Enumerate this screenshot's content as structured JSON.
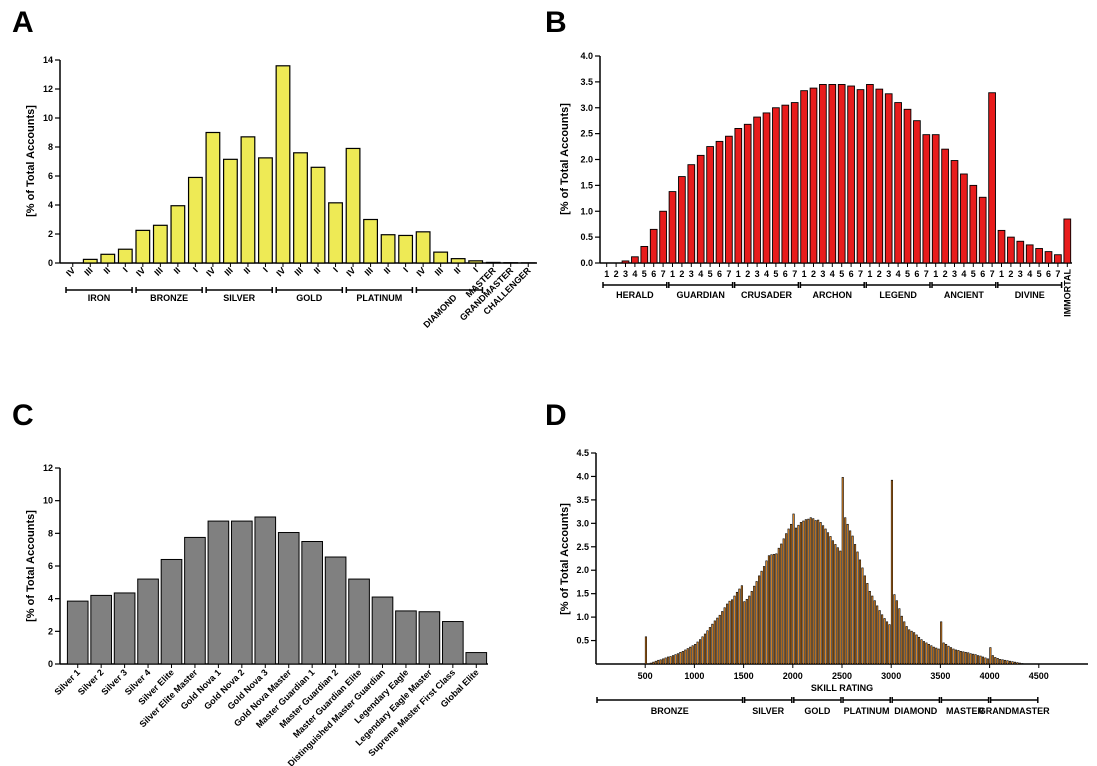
{
  "chart_data": [
    {
      "panel": "A",
      "type": "bar",
      "ylabel": "[% of Total Accounts]",
      "ylim": [
        0,
        14
      ],
      "yticks": [
        0,
        2,
        4,
        6,
        8,
        10,
        12,
        14
      ],
      "grid": false,
      "bar_color": "#eeea55",
      "categories": [
        "IV",
        "III",
        "II",
        "I",
        "IV",
        "III",
        "II",
        "I",
        "IV",
        "III",
        "II",
        "I",
        "IV",
        "III",
        "II",
        "I",
        "IV",
        "III",
        "II",
        "I",
        "IV",
        "III",
        "II",
        "I",
        "MASTER",
        "GRANDMASTER",
        "CHALLENGER"
      ],
      "values": [
        0.0,
        0.25,
        0.6,
        0.95,
        2.25,
        2.6,
        3.95,
        5.9,
        9.0,
        7.15,
        8.7,
        7.25,
        13.6,
        7.6,
        6.6,
        4.15,
        7.9,
        3.0,
        1.95,
        1.9,
        2.15,
        0.75,
        0.3,
        0.15,
        0.04,
        0.02,
        0.01
      ],
      "groups": [
        {
          "label": "IRON",
          "start": 0,
          "end": 3
        },
        {
          "label": "BRONZE",
          "start": 4,
          "end": 7
        },
        {
          "label": "SILVER",
          "start": 8,
          "end": 11
        },
        {
          "label": "GOLD",
          "start": 12,
          "end": 15
        },
        {
          "label": "PLATINUM",
          "start": 16,
          "end": 19
        },
        {
          "label": "DIAMOND",
          "start": 20,
          "end": 23
        }
      ]
    },
    {
      "panel": "B",
      "type": "bar",
      "ylabel": "[% of Total Accounts]",
      "ylim": [
        0,
        4.0
      ],
      "yticks": [
        "0.0",
        "0.5",
        "1.0",
        "1.5",
        "2.0",
        "2.5",
        "3.0",
        "3.5",
        "4.0"
      ],
      "grid": false,
      "bar_color": "#e81c1c",
      "categories": [
        "1",
        "2",
        "3",
        "4",
        "5",
        "6",
        "7",
        "1",
        "2",
        "3",
        "4",
        "5",
        "6",
        "7",
        "1",
        "2",
        "3",
        "4",
        "5",
        "6",
        "7",
        "1",
        "2",
        "3",
        "4",
        "5",
        "6",
        "7",
        "1",
        "2",
        "3",
        "4",
        "5",
        "6",
        "7",
        "1",
        "2",
        "3",
        "4",
        "5",
        "6",
        "7",
        "1",
        "2",
        "3",
        "4",
        "5",
        "6",
        "7",
        "IMMORTAL"
      ],
      "values": [
        0.0,
        0.0,
        0.04,
        0.12,
        0.32,
        0.65,
        1.0,
        1.38,
        1.67,
        1.9,
        2.08,
        2.25,
        2.35,
        2.45,
        2.6,
        2.68,
        2.82,
        2.9,
        3.0,
        3.05,
        3.1,
        3.33,
        3.38,
        3.45,
        3.45,
        3.45,
        3.42,
        3.35,
        3.45,
        3.36,
        3.27,
        3.1,
        2.97,
        2.75,
        2.48,
        2.48,
        2.2,
        1.98,
        1.72,
        1.5,
        1.27,
        3.29,
        0.63,
        0.5,
        0.42,
        0.35,
        0.28,
        0.22,
        0.16,
        0.85
      ],
      "groups": [
        {
          "label": "HERALD",
          "start": 0,
          "end": 6
        },
        {
          "label": "GUARDIAN",
          "start": 7,
          "end": 13
        },
        {
          "label": "CRUSADER",
          "start": 14,
          "end": 20
        },
        {
          "label": "ARCHON",
          "start": 21,
          "end": 27
        },
        {
          "label": "LEGEND",
          "start": 28,
          "end": 34
        },
        {
          "label": "ANCIENT",
          "start": 35,
          "end": 41
        },
        {
          "label": "DIVINE",
          "start": 42,
          "end": 48
        }
      ]
    },
    {
      "panel": "C",
      "type": "bar",
      "ylabel": "[% of Total Accounts]",
      "ylim": [
        0,
        12
      ],
      "yticks": [
        0,
        2,
        4,
        6,
        8,
        10,
        12
      ],
      "grid": false,
      "bar_color": "#808080",
      "categories": [
        "Silver 1",
        "Silver 2",
        "Silver 3",
        "Silver 4",
        "Silver Elite",
        "Silver Elite Master",
        "Gold Nova 1",
        "Gold Nova 2",
        "Gold Nova 3",
        "Gold Nova Master",
        "Master Guardian 1",
        "Master Guardian 2",
        "Master Guardian Elite",
        "Distinguished Master Guardian",
        "Legendary Eagle",
        "Legendary Eagle Master",
        "Supreme Master First Class",
        "Global Elite"
      ],
      "values": [
        3.85,
        4.2,
        4.35,
        5.2,
        6.4,
        7.75,
        8.75,
        8.75,
        9.0,
        8.05,
        7.5,
        6.55,
        5.2,
        4.1,
        3.25,
        3.2,
        2.6,
        0.7
      ]
    },
    {
      "panel": "D",
      "type": "bar",
      "xlabel": "SKILL RATING",
      "ylabel": "[% of Total Accounts]",
      "xlim": [
        0,
        5000
      ],
      "ylim": [
        0,
        4.5
      ],
      "xticks": [
        500,
        1000,
        1500,
        2000,
        2500,
        3000,
        3500,
        4000,
        4500
      ],
      "yticks": [
        "0.5",
        "1.0",
        "1.5",
        "2.0",
        "2.5",
        "3.0",
        "3.5",
        "4.0",
        "4.5"
      ],
      "grid": false,
      "bar_color": "#f0922a",
      "bin_width": 25,
      "x": [
        500,
        525,
        550,
        575,
        600,
        625,
        650,
        675,
        700,
        725,
        750,
        775,
        800,
        825,
        850,
        875,
        900,
        925,
        950,
        975,
        1000,
        1025,
        1050,
        1075,
        1100,
        1125,
        1150,
        1175,
        1200,
        1225,
        1250,
        1275,
        1300,
        1325,
        1350,
        1375,
        1400,
        1425,
        1450,
        1475,
        1500,
        1525,
        1550,
        1575,
        1600,
        1625,
        1650,
        1675,
        1700,
        1725,
        1750,
        1775,
        1800,
        1825,
        1850,
        1875,
        1900,
        1925,
        1950,
        1975,
        2000,
        2025,
        2050,
        2075,
        2100,
        2125,
        2150,
        2175,
        2200,
        2225,
        2250,
        2275,
        2300,
        2325,
        2350,
        2375,
        2400,
        2425,
        2450,
        2475,
        2500,
        2525,
        2550,
        2575,
        2600,
        2625,
        2650,
        2675,
        2700,
        2725,
        2750,
        2775,
        2800,
        2825,
        2850,
        2875,
        2900,
        2925,
        2950,
        2975,
        3000,
        3025,
        3050,
        3075,
        3100,
        3125,
        3150,
        3175,
        3200,
        3225,
        3250,
        3275,
        3300,
        3325,
        3350,
        3375,
        3400,
        3425,
        3450,
        3475,
        3500,
        3525,
        3550,
        3575,
        3600,
        3625,
        3650,
        3675,
        3700,
        3725,
        3750,
        3775,
        3800,
        3825,
        3850,
        3875,
        3900,
        3925,
        3950,
        3975,
        4000,
        4025,
        4050,
        4075,
        4100,
        4125,
        4150,
        4175,
        4200,
        4225,
        4250,
        4275,
        4300,
        4325,
        4350,
        4375,
        4400,
        4425
      ],
      "values": [
        0.58,
        0.0,
        0.02,
        0.04,
        0.06,
        0.08,
        0.09,
        0.11,
        0.13,
        0.15,
        0.16,
        0.18,
        0.2,
        0.22,
        0.25,
        0.27,
        0.3,
        0.33,
        0.36,
        0.39,
        0.42,
        0.47,
        0.52,
        0.58,
        0.64,
        0.71,
        0.78,
        0.85,
        0.92,
        0.98,
        1.04,
        1.12,
        1.2,
        1.28,
        1.34,
        1.37,
        1.45,
        1.53,
        1.6,
        1.67,
        1.33,
        1.38,
        1.45,
        1.55,
        1.66,
        1.76,
        1.88,
        1.98,
        2.08,
        2.2,
        2.31,
        2.33,
        2.34,
        2.35,
        2.47,
        2.56,
        2.67,
        2.78,
        2.88,
        2.98,
        3.2,
        2.9,
        2.96,
        3.02,
        3.05,
        3.08,
        3.09,
        3.12,
        3.1,
        3.06,
        3.07,
        3.02,
        2.95,
        2.88,
        2.8,
        2.72,
        2.63,
        2.55,
        2.48,
        2.41,
        3.98,
        3.12,
        2.98,
        2.84,
        2.73,
        2.55,
        2.39,
        2.22,
        2.05,
        1.88,
        1.72,
        1.55,
        1.45,
        1.35,
        1.24,
        1.14,
        1.05,
        0.97,
        0.9,
        0.84,
        3.92,
        1.48,
        1.35,
        1.18,
        1.02,
        0.9,
        0.8,
        0.73,
        0.7,
        0.67,
        0.62,
        0.57,
        0.52,
        0.48,
        0.45,
        0.42,
        0.39,
        0.36,
        0.34,
        0.32,
        0.9,
        0.45,
        0.42,
        0.38,
        0.35,
        0.32,
        0.3,
        0.29,
        0.27,
        0.26,
        0.25,
        0.24,
        0.22,
        0.21,
        0.2,
        0.18,
        0.17,
        0.15,
        0.13,
        0.11,
        0.35,
        0.18,
        0.14,
        0.12,
        0.1,
        0.09,
        0.08,
        0.07,
        0.06,
        0.05,
        0.04,
        0.03,
        0.02,
        0.01,
        0.0,
        0.0,
        0.0,
        0.0
      ],
      "groups": [
        {
          "label": "BRONZE",
          "start": 0,
          "end": 1500
        },
        {
          "label": "SILVER",
          "start": 1500,
          "end": 2000
        },
        {
          "label": "GOLD",
          "start": 2000,
          "end": 2500
        },
        {
          "label": "PLATINUM",
          "start": 2500,
          "end": 3000
        },
        {
          "label": "DIAMOND",
          "start": 3000,
          "end": 3500
        },
        {
          "label": "MASTER",
          "start": 3500,
          "end": 4000
        },
        {
          "label": "GRANDMASTER",
          "start": 4000,
          "end": 4500
        }
      ]
    }
  ]
}
